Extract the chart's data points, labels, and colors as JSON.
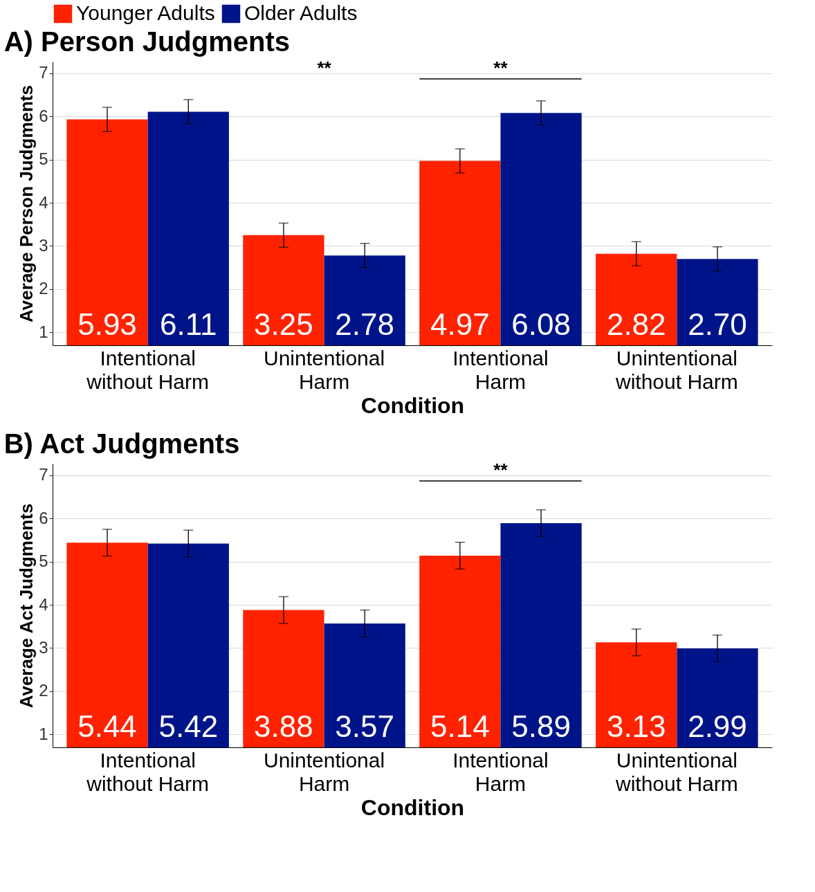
{
  "chart_data": [
    {
      "type": "bar",
      "title": "A)     Person Judgments",
      "xlabel": "Condition",
      "ylabel": "Average Person Judgments",
      "categories": [
        "Intentional\nwithout Harm",
        "Unintentional\nHarm",
        "Intentional\nHarm",
        "Unintentional\nwithout Harm"
      ],
      "series": [
        {
          "name": "Younger Adults",
          "color": "#ff2200",
          "values": [
            5.93,
            3.25,
            4.97,
            2.82
          ],
          "value_labels": [
            "5.93",
            "3.25",
            "4.97",
            "2.82"
          ],
          "errors": [
            0.28,
            0.28,
            0.28,
            0.28
          ]
        },
        {
          "name": "Older Adults",
          "color": "#00148a",
          "values": [
            6.11,
            2.78,
            6.08,
            2.7
          ],
          "value_labels": [
            "6.11",
            "2.78",
            "6.08",
            "2.70"
          ],
          "errors": [
            0.28,
            0.28,
            0.28,
            0.28
          ]
        }
      ],
      "ylim": [
        0.7,
        7.27
      ],
      "yticks": [
        1,
        2,
        3,
        4,
        5,
        6,
        7
      ],
      "grid": "y",
      "legend": "top",
      "annotations": [
        "**",
        "**"
      ]
    },
    {
      "type": "bar",
      "title": "B)     Act Judgments",
      "xlabel": "Condition",
      "ylabel": "Average Act Judgments",
      "categories": [
        "Intentional\nwithout Harm",
        "Unintentional\nHarm",
        "Intentional\nHarm",
        "Unintentional\nwithout Harm"
      ],
      "series": [
        {
          "name": "Younger Adults",
          "color": "#ff2200",
          "values": [
            5.44,
            3.88,
            5.14,
            3.13
          ],
          "value_labels": [
            "5.44",
            "3.88",
            "5.14",
            "3.13"
          ],
          "errors": [
            0.31,
            0.31,
            0.31,
            0.31
          ]
        },
        {
          "name": "Older Adults",
          "color": "#00148a",
          "values": [
            5.42,
            3.57,
            5.89,
            2.99
          ],
          "value_labels": [
            "5.42",
            "3.57",
            "5.89",
            "2.99"
          ],
          "errors": [
            0.31,
            0.31,
            0.31,
            0.31
          ]
        }
      ],
      "ylim": [
        0.7,
        7.27
      ],
      "yticks": [
        1,
        2,
        3,
        4,
        5,
        6,
        7
      ],
      "grid": "y",
      "legend": "top",
      "annotations": [
        "**"
      ]
    }
  ]
}
